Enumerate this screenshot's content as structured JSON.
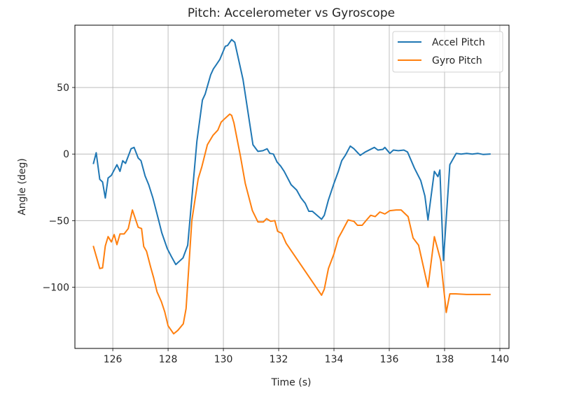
{
  "chart_data": {
    "type": "line",
    "title": "Pitch: Accelerometer vs Gyroscope",
    "xlabel": "Time (s)",
    "ylabel": "Angle (deg)",
    "xlim": [
      124.63,
      140.33
    ],
    "ylim": [
      -146,
      96.8
    ],
    "xticks": [
      126,
      128,
      130,
      132,
      134,
      136,
      138,
      140
    ],
    "xtick_labels": [
      "126",
      "128",
      "130",
      "132",
      "134",
      "136",
      "138",
      "140"
    ],
    "yticks": [
      -100,
      -50,
      0,
      50
    ],
    "ytick_labels": [
      "−100",
      "−50",
      "0",
      "50"
    ],
    "grid": true,
    "legend_position": "upper right",
    "series": [
      {
        "name": "Accel Pitch",
        "color": "#1f77b4",
        "x": [
          125.3,
          125.4,
          125.53,
          125.63,
          125.73,
          125.83,
          125.95,
          126.15,
          126.26,
          126.36,
          126.46,
          126.66,
          126.77,
          126.92,
          127.02,
          127.17,
          127.3,
          127.45,
          127.66,
          127.77,
          127.97,
          128.12,
          128.28,
          128.54,
          128.71,
          129.04,
          129.24,
          129.34,
          129.54,
          129.64,
          129.74,
          129.87,
          130.07,
          130.15,
          130.3,
          130.41,
          130.71,
          131.07,
          131.25,
          131.43,
          131.58,
          131.68,
          131.81,
          131.94,
          132.07,
          132.2,
          132.45,
          132.65,
          132.81,
          132.96,
          133.09,
          133.22,
          133.55,
          133.65,
          133.8,
          134.0,
          134.16,
          134.28,
          134.41,
          134.59,
          134.72,
          134.95,
          135.13,
          135.46,
          135.59,
          135.77,
          135.84,
          136.02,
          136.15,
          136.33,
          136.53,
          136.66,
          136.91,
          137.14,
          137.29,
          137.4,
          137.63,
          137.76,
          137.83,
          137.96,
          138.19,
          138.42,
          138.6,
          138.8,
          139.0,
          139.2,
          139.4,
          139.64
        ],
        "y": [
          -7,
          1,
          -19,
          -21,
          -33,
          -18,
          -16,
          -8,
          -13,
          -5,
          -7,
          4,
          5,
          -3,
          -5,
          -16.5,
          -23,
          -33,
          -50,
          -59,
          -71,
          -77,
          -83,
          -78,
          -68.5,
          9.5,
          40.5,
          45,
          59.5,
          64,
          67,
          71,
          81,
          81.5,
          86,
          84,
          56,
          7,
          2,
          2.5,
          4,
          0.5,
          0,
          -6,
          -9,
          -13,
          -23,
          -27,
          -33,
          -37,
          -43,
          -43,
          -49,
          -46,
          -34.5,
          -22,
          -13,
          -5,
          -1,
          6,
          4,
          -1,
          1.5,
          5,
          3,
          3.5,
          5,
          0.5,
          3,
          2.5,
          3,
          1.5,
          -10.5,
          -20,
          -31.5,
          -49.5,
          -13,
          -17,
          -12,
          -80,
          -8,
          0.5,
          0,
          0.5,
          0,
          0.5,
          -0.3,
          0
        ]
      },
      {
        "name": "Gyro Pitch",
        "color": "#ff7f0e",
        "x": [
          125.3,
          125.53,
          125.63,
          125.73,
          125.83,
          125.95,
          126.05,
          126.15,
          126.26,
          126.41,
          126.56,
          126.71,
          126.92,
          127.04,
          127.12,
          127.22,
          127.37,
          127.48,
          127.6,
          127.76,
          127.88,
          128.0,
          128.2,
          128.35,
          128.55,
          128.65,
          128.86,
          129.09,
          129.22,
          129.42,
          129.62,
          129.8,
          129.92,
          130.02,
          130.23,
          130.3,
          130.38,
          130.61,
          130.79,
          131.05,
          131.25,
          131.45,
          131.56,
          131.71,
          131.86,
          131.96,
          132.11,
          132.27,
          133.55,
          133.65,
          133.8,
          134.0,
          134.16,
          134.28,
          134.51,
          134.72,
          134.85,
          135.02,
          135.18,
          135.33,
          135.49,
          135.66,
          135.84,
          136.02,
          136.25,
          136.43,
          136.68,
          136.86,
          137.06,
          137.4,
          137.63,
          137.86,
          138.06,
          138.19,
          138.4,
          138.8,
          139.2,
          139.64
        ],
        "y": [
          -69.5,
          -86,
          -85.5,
          -69,
          -62,
          -66,
          -60.5,
          -68,
          -60,
          -60,
          -56,
          -42,
          -55,
          -56,
          -69.5,
          -73,
          -85,
          -93,
          -103.5,
          -111,
          -118.5,
          -129,
          -135,
          -132.5,
          -127.5,
          -116,
          -50,
          -18.5,
          -9.5,
          7,
          14,
          18,
          24,
          26,
          30,
          29,
          23.5,
          -1,
          -22,
          -42.5,
          -51,
          -51,
          -48.5,
          -50.5,
          -50,
          -58,
          -59.5,
          -67,
          -106,
          -101.5,
          -86,
          -75,
          -63,
          -58.5,
          -49.5,
          -50.5,
          -53.5,
          -53.5,
          -49.5,
          -46,
          -47,
          -43.5,
          -45,
          -42.5,
          -42,
          -42,
          -47,
          -63,
          -68.5,
          -100,
          -62,
          -80,
          -119,
          -105,
          -105,
          -105.5,
          -105.5,
          -105.5
        ]
      }
    ]
  },
  "legend": {
    "items": [
      {
        "label": "Accel Pitch",
        "color": "#1f77b4"
      },
      {
        "label": "Gyro Pitch",
        "color": "#ff7f0e"
      }
    ]
  }
}
